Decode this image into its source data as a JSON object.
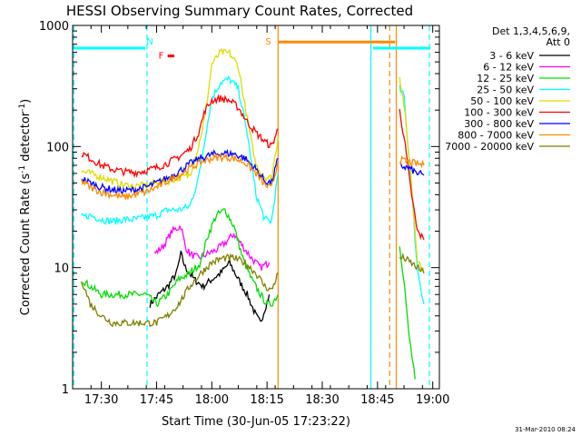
{
  "chart_data": {
    "type": "line",
    "title": "HESSI Observing Summary Count Rates, Corrected",
    "xlabel": "Start Time (30-Jun-05 17:23:22)",
    "ylabel_main": "Corrected Count Rate (s",
    "ylabel_sup1": "-1",
    "ylabel_mid": " detector",
    "ylabel_sup2": "-1",
    "ylabel_end": ")",
    "yscale": "log",
    "ylim": [
      1,
      1000
    ],
    "xlim_minutes": [
      17.37,
      19.03
    ],
    "yticks": [
      "1",
      "10",
      "100",
      "1000"
    ],
    "xticks": [
      {
        "t": 17.5,
        "label": "17:30"
      },
      {
        "t": 17.75,
        "label": "17:45"
      },
      {
        "t": 18.0,
        "label": "18:00"
      },
      {
        "t": 18.25,
        "label": "18:15"
      },
      {
        "t": 18.5,
        "label": "18:30"
      },
      {
        "t": 18.75,
        "label": "18:45"
      },
      {
        "t": 19.0,
        "label": "19:00"
      }
    ],
    "legend_position": "right",
    "legend_header": [
      "Det 1,3,4,5,6,9,",
      "Att 0"
    ],
    "series": [
      {
        "name": "3 - 6 keV",
        "color": "#000000",
        "x": [
          17.72,
          17.76,
          17.8,
          17.84,
          17.86,
          17.88,
          17.92,
          17.96,
          18.0,
          18.04,
          18.08,
          18.12,
          18.16,
          18.2,
          18.22,
          18.26
        ],
        "y": [
          5,
          6,
          7,
          9,
          13,
          10,
          8,
          7,
          8,
          9,
          11,
          8,
          6,
          4,
          3.5,
          6
        ]
      },
      {
        "name": "6 - 12 keV",
        "color": "#ff00ff",
        "x": [
          17.74,
          17.78,
          17.82,
          17.86,
          17.88,
          17.9,
          17.94,
          17.98,
          18.02,
          18.06,
          18.1,
          18.14,
          18.18,
          18.22,
          18.26
        ],
        "y": [
          13,
          15,
          20,
          22,
          15,
          13,
          12,
          13,
          14,
          16,
          19,
          15,
          12,
          10,
          11
        ]
      },
      {
        "name": "12 - 25 keV",
        "color": "#00dd00",
        "x": [
          17.41,
          17.45,
          17.5,
          17.55,
          17.6,
          17.65,
          17.7,
          17.75,
          17.8,
          17.85,
          17.9,
          17.95,
          17.98,
          18.02,
          18.06,
          18.1,
          18.14,
          18.18,
          18.22,
          18.25,
          18.27,
          18.3,
          18.85,
          18.87,
          18.89,
          18.92
        ],
        "y": [
          8,
          7,
          6,
          6,
          6,
          6,
          6,
          5,
          6,
          8,
          9,
          11,
          18,
          27,
          30,
          22,
          12,
          8,
          6,
          5,
          5,
          6,
          15,
          8,
          3,
          1.2
        ]
      },
      {
        "name": "25 - 50 keV",
        "color": "#00ffff",
        "x": [
          17.41,
          17.45,
          17.5,
          17.55,
          17.6,
          17.65,
          17.7,
          17.75,
          17.8,
          17.85,
          17.9,
          17.94,
          17.97,
          18.0,
          18.04,
          18.08,
          18.12,
          18.16,
          18.2,
          18.24,
          18.27,
          18.3,
          18.85,
          18.87,
          18.9,
          18.93,
          18.96
        ],
        "y": [
          26,
          27,
          25,
          24,
          25,
          25,
          26,
          27,
          30,
          30,
          32,
          55,
          120,
          250,
          340,
          360,
          300,
          130,
          40,
          25,
          24,
          60,
          300,
          260,
          55,
          10,
          5
        ]
      },
      {
        "name": "50 - 100 keV",
        "color": "#dddd00",
        "x": [
          17.41,
          17.45,
          17.5,
          17.55,
          17.6,
          17.65,
          17.7,
          17.75,
          17.8,
          17.85,
          17.9,
          17.94,
          17.97,
          18.0,
          18.04,
          18.08,
          18.12,
          18.16,
          18.2,
          18.24,
          18.27,
          18.3,
          18.85,
          18.87,
          18.9,
          18.93,
          18.96
        ],
        "y": [
          62,
          60,
          56,
          52,
          48,
          47,
          48,
          50,
          52,
          55,
          58,
          100,
          180,
          480,
          600,
          590,
          460,
          170,
          70,
          56,
          55,
          120,
          380,
          220,
          60,
          12,
          9
        ]
      },
      {
        "name": "100 - 300 keV",
        "color": "#ff0000",
        "x": [
          17.41,
          17.45,
          17.5,
          17.55,
          17.6,
          17.65,
          17.7,
          17.75,
          17.8,
          17.85,
          17.9,
          17.94,
          17.97,
          18.0,
          18.04,
          18.08,
          18.12,
          18.16,
          18.2,
          18.24,
          18.27,
          18.3,
          18.85,
          18.87,
          18.9,
          18.93,
          18.96
        ],
        "y": [
          88,
          80,
          70,
          65,
          62,
          61,
          63,
          67,
          73,
          82,
          95,
          130,
          200,
          240,
          250,
          240,
          210,
          160,
          130,
          110,
          100,
          140,
          200,
          120,
          45,
          20,
          17
        ]
      },
      {
        "name": "300 - 800 keV",
        "color": "#0000ff",
        "x": [
          17.41,
          17.45,
          17.5,
          17.55,
          17.6,
          17.65,
          17.7,
          17.75,
          17.8,
          17.85,
          17.9,
          17.95,
          18.0,
          18.05,
          18.1,
          18.15,
          18.2,
          18.24,
          18.27,
          18.3,
          18.85,
          18.87,
          18.9,
          18.93,
          18.96
        ],
        "y": [
          55,
          50,
          46,
          44,
          43,
          44,
          46,
          50,
          55,
          62,
          72,
          80,
          86,
          88,
          87,
          80,
          65,
          52,
          50,
          80,
          70,
          68,
          65,
          60,
          58
        ]
      },
      {
        "name": "800 - 7000 keV",
        "color": "#ff8800",
        "x": [
          17.41,
          17.45,
          17.5,
          17.55,
          17.6,
          17.65,
          17.7,
          17.75,
          17.8,
          17.85,
          17.9,
          17.95,
          18.0,
          18.05,
          18.1,
          18.15,
          18.2,
          18.24,
          18.27,
          18.3,
          18.85,
          18.87,
          18.9,
          18.93,
          18.96
        ],
        "y": [
          52,
          46,
          42,
          40,
          38,
          40,
          42,
          46,
          52,
          58,
          66,
          74,
          80,
          82,
          80,
          74,
          60,
          48,
          45,
          75,
          78,
          76,
          74,
          72,
          70
        ]
      },
      {
        "name": "7000 - 20000 keV",
        "color": "#7f7f00",
        "x": [
          17.41,
          17.45,
          17.5,
          17.55,
          17.6,
          17.65,
          17.7,
          17.75,
          17.8,
          17.85,
          17.9,
          17.95,
          18.0,
          18.05,
          18.1,
          18.15,
          18.2,
          18.24,
          18.27,
          18.3,
          18.85,
          18.87,
          18.9,
          18.93,
          18.96
        ],
        "y": [
          8,
          5,
          4,
          3.5,
          3.5,
          3.5,
          3.5,
          3.5,
          4,
          5,
          7,
          9,
          11,
          12,
          12,
          11,
          9,
          7,
          6.5,
          9,
          12,
          12,
          11,
          10,
          9
        ]
      }
    ],
    "flags": [
      {
        "label": "N",
        "color": "#00ffff",
        "segments": [
          [
            17.37,
            17.7,
            650
          ],
          [
            18.73,
            18.99,
            650
          ]
        ]
      },
      {
        "label": "F",
        "color": "#ff0000",
        "segments": [
          [
            17.8,
            17.83,
            560
          ]
        ]
      },
      {
        "label": "S",
        "color": "#ff8800",
        "segments": [
          [
            18.3,
            18.83,
            730
          ]
        ]
      }
    ],
    "vlines": [
      {
        "t": 17.375,
        "color": "#00ffff",
        "dash": true
      },
      {
        "t": 17.707,
        "color": "#00ffff",
        "dash": true
      },
      {
        "t": 18.3,
        "color": "#ff8800",
        "dash": false
      },
      {
        "t": 18.72,
        "color": "#00ffff",
        "dash": false
      },
      {
        "t": 18.805,
        "color": "#ff8800",
        "dash": true
      },
      {
        "t": 18.835,
        "color": "#ff8800",
        "dash": false
      },
      {
        "t": 18.985,
        "color": "#00ffff",
        "dash": true
      }
    ]
  },
  "footer": {
    "timestamp": "31-Mar-2010 08:24"
  }
}
